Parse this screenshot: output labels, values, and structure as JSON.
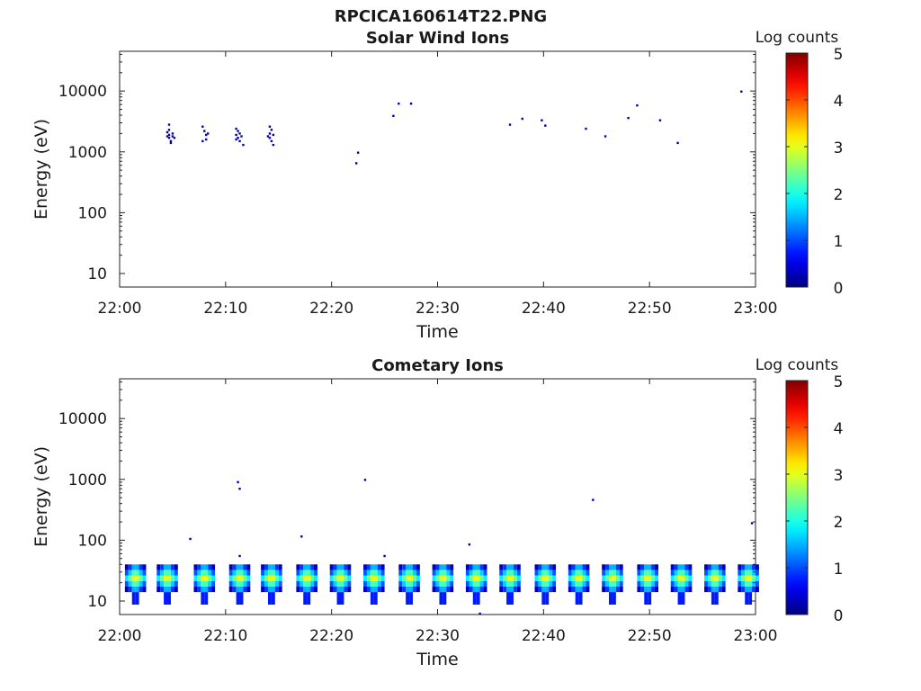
{
  "figure": {
    "title": "RPCICA160614T22.PNG"
  },
  "colors": {
    "axes": "#222222",
    "marker": "#00008f"
  },
  "chart_data": [
    {
      "type": "heatmap",
      "title": "Solar Wind Ions",
      "xlabel": "Time",
      "ylabel": "Energy (eV)",
      "y_scale": "log",
      "ylim": [
        6,
        45000
      ],
      "xlim": [
        "22:00",
        "23:00"
      ],
      "xticks": [
        "22:00",
        "22:10",
        "22:20",
        "22:30",
        "22:40",
        "22:50",
        "23:00"
      ],
      "yticks": [
        10,
        100,
        1000,
        10000
      ],
      "ytick_labels": [
        "10",
        "100",
        "1000",
        "10000"
      ],
      "colorbar": {
        "label": "Log counts",
        "min": 0,
        "max": 5,
        "ticks": [
          "0",
          "1",
          "2",
          "3",
          "4",
          "5"
        ],
        "colormap": "jet"
      },
      "grid": false,
      "points": [
        {
          "t": "22:04:40",
          "e": 2800,
          "z": 0.2
        },
        {
          "t": "22:04:40",
          "e": 2300,
          "z": 0.2
        },
        {
          "t": "22:04:40",
          "e": 1900,
          "z": 0.2
        },
        {
          "t": "22:04:40",
          "e": 1700,
          "z": 0.2
        },
        {
          "t": "22:04:50",
          "e": 1500,
          "z": 0.2
        },
        {
          "t": "22:04:50",
          "e": 1400,
          "z": 0.2
        },
        {
          "t": "22:05:00",
          "e": 2000,
          "z": 0.2
        },
        {
          "t": "22:05:00",
          "e": 1800,
          "z": 0.2
        },
        {
          "t": "22:04:30",
          "e": 1800,
          "z": 0.2
        },
        {
          "t": "22:04:30",
          "e": 2100,
          "z": 0.2
        },
        {
          "t": "22:05:10",
          "e": 1700,
          "z": 0.2
        },
        {
          "t": "22:07:50",
          "e": 2600,
          "z": 0.2
        },
        {
          "t": "22:07:50",
          "e": 1500,
          "z": 0.2
        },
        {
          "t": "22:08:00",
          "e": 2200,
          "z": 0.2
        },
        {
          "t": "22:08:10",
          "e": 1900,
          "z": 0.2
        },
        {
          "t": "22:08:10",
          "e": 1600,
          "z": 0.2
        },
        {
          "t": "22:08:20",
          "e": 2000,
          "z": 0.2
        },
        {
          "t": "22:11:00",
          "e": 2400,
          "z": 0.2
        },
        {
          "t": "22:11:00",
          "e": 1900,
          "z": 0.2
        },
        {
          "t": "22:11:00",
          "e": 1600,
          "z": 0.2
        },
        {
          "t": "22:11:10",
          "e": 2200,
          "z": 0.2
        },
        {
          "t": "22:11:10",
          "e": 1700,
          "z": 0.2
        },
        {
          "t": "22:11:20",
          "e": 2000,
          "z": 0.2
        },
        {
          "t": "22:11:20",
          "e": 1500,
          "z": 0.2
        },
        {
          "t": "22:11:30",
          "e": 1800,
          "z": 0.2
        },
        {
          "t": "22:11:40",
          "e": 1300,
          "z": 0.2
        },
        {
          "t": "22:14:10",
          "e": 2600,
          "z": 0.2
        },
        {
          "t": "22:14:10",
          "e": 2000,
          "z": 0.2
        },
        {
          "t": "22:14:10",
          "e": 1700,
          "z": 0.2
        },
        {
          "t": "22:14:20",
          "e": 2300,
          "z": 0.2
        },
        {
          "t": "22:14:20",
          "e": 1500,
          "z": 0.2
        },
        {
          "t": "22:14:30",
          "e": 1900,
          "z": 0.2
        },
        {
          "t": "22:14:30",
          "e": 1300,
          "z": 0.2
        },
        {
          "t": "22:14:00",
          "e": 1800,
          "z": 0.2
        },
        {
          "t": "22:22:20",
          "e": 650,
          "z": 0.2
        },
        {
          "t": "22:22:30",
          "e": 970,
          "z": 0.2
        },
        {
          "t": "22:25:50",
          "e": 3900,
          "z": 0.2
        },
        {
          "t": "22:26:20",
          "e": 6200,
          "z": 0.2
        },
        {
          "t": "22:27:30",
          "e": 6200,
          "z": 0.2
        },
        {
          "t": "22:36:50",
          "e": 2800,
          "z": 0.2
        },
        {
          "t": "22:38:00",
          "e": 3500,
          "z": 0.2
        },
        {
          "t": "22:39:50",
          "e": 3300,
          "z": 0.2
        },
        {
          "t": "22:40:10",
          "e": 2700,
          "z": 0.2
        },
        {
          "t": "22:44:00",
          "e": 2400,
          "z": 0.2
        },
        {
          "t": "22:45:50",
          "e": 1800,
          "z": 0.2
        },
        {
          "t": "22:48:00",
          "e": 3600,
          "z": 0.2
        },
        {
          "t": "22:48:50",
          "e": 5800,
          "z": 0.2
        },
        {
          "t": "22:51:00",
          "e": 3300,
          "z": 0.2
        },
        {
          "t": "22:52:40",
          "e": 1400,
          "z": 0.2
        },
        {
          "t": "22:58:40",
          "e": 9800,
          "z": 0.2
        }
      ]
    },
    {
      "type": "heatmap",
      "title": "Cometary Ions",
      "xlabel": "Time",
      "ylabel": "Energy (eV)",
      "y_scale": "log",
      "ylim": [
        6,
        45000
      ],
      "xlim": [
        "22:00",
        "23:00"
      ],
      "xticks": [
        "22:00",
        "22:10",
        "22:20",
        "22:30",
        "22:40",
        "22:50",
        "23:00"
      ],
      "yticks": [
        10,
        100,
        1000,
        10000
      ],
      "ytick_labels": [
        "10",
        "100",
        "1000",
        "10000"
      ],
      "colorbar": {
        "label": "Log counts",
        "min": 0,
        "max": 5,
        "ticks": [
          "0",
          "1",
          "2",
          "3",
          "4",
          "5"
        ],
        "colormap": "jet"
      },
      "grid": false,
      "sweep_start_times": [
        "22:00:30",
        "22:03:30",
        "22:07:00",
        "22:10:20",
        "22:13:20",
        "22:16:40",
        "22:19:50",
        "22:23:00",
        "22:26:20",
        "22:29:30",
        "22:32:40",
        "22:35:50",
        "22:39:10",
        "22:42:20",
        "22:45:30",
        "22:48:50",
        "22:52:00",
        "22:55:10",
        "22:58:20"
      ],
      "sweep_energy_range": [
        14,
        40
      ],
      "sweep_peak_log_counts": 3.0,
      "points": [
        {
          "t": "22:06:40",
          "e": 105,
          "z": 0.2
        },
        {
          "t": "22:11:10",
          "e": 900,
          "z": 0.2
        },
        {
          "t": "22:11:20",
          "e": 700,
          "z": 0.2
        },
        {
          "t": "22:11:20",
          "e": 55,
          "z": 0.2
        },
        {
          "t": "22:17:10",
          "e": 115,
          "z": 0.2
        },
        {
          "t": "22:23:10",
          "e": 980,
          "z": 0.2
        },
        {
          "t": "22:25:00",
          "e": 55,
          "z": 0.2
        },
        {
          "t": "22:33:00",
          "e": 85,
          "z": 0.2
        },
        {
          "t": "22:34:00",
          "e": 6.2,
          "z": 0.2
        },
        {
          "t": "22:44:40",
          "e": 460,
          "z": 0.2
        },
        {
          "t": "22:59:40",
          "e": 190,
          "z": 0.2
        }
      ]
    }
  ]
}
